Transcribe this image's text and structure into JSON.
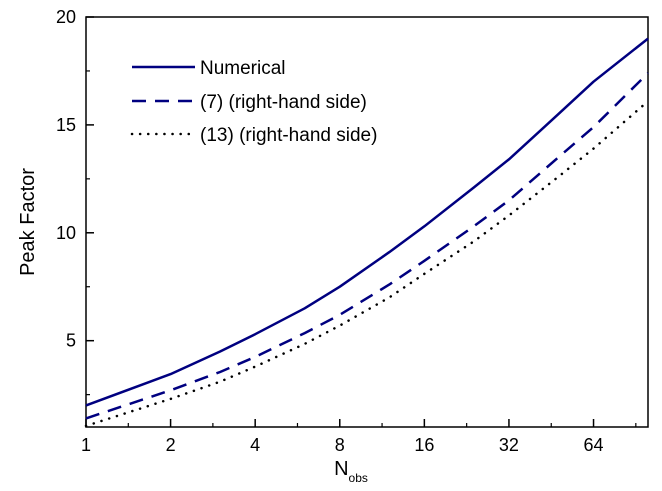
{
  "chart_data": {
    "type": "line",
    "title": "",
    "xlabel": "N",
    "xlabel_sub": "obs",
    "ylabel": "Peak Factor",
    "x_scale": "log2",
    "xlim": [
      1,
      100
    ],
    "ylim": [
      1,
      20
    ],
    "x_ticks": [
      1,
      2,
      4,
      8,
      16,
      32,
      64
    ],
    "x_tick_labels": [
      "1",
      "2",
      "4",
      "8",
      "16",
      "32",
      "64"
    ],
    "y_ticks": [
      5,
      10,
      15,
      20
    ],
    "y_tick_labels": [
      "5",
      "10",
      "15",
      "20"
    ],
    "grid": false,
    "legend_position": "top-left",
    "series": [
      {
        "name": "Numerical",
        "style": "solid",
        "color": "#000080",
        "x": [
          1,
          2,
          3,
          4,
          6,
          8,
          12,
          16,
          24,
          32,
          48,
          64,
          100
        ],
        "y": [
          2.0,
          3.45,
          4.5,
          5.3,
          6.5,
          7.5,
          9.1,
          10.3,
          12.1,
          13.4,
          15.5,
          17.0,
          19.0
        ]
      },
      {
        "name": "(7) (right-hand side)",
        "style": "dashed",
        "color": "#000080",
        "x": [
          1,
          2,
          3,
          4,
          6,
          8,
          12,
          16,
          24,
          32,
          48,
          64,
          100
        ],
        "y": [
          1.4,
          2.7,
          3.55,
          4.25,
          5.35,
          6.2,
          7.6,
          8.7,
          10.3,
          11.5,
          13.5,
          14.9,
          17.4
        ]
      },
      {
        "name": "(13) (right-hand side)",
        "style": "dotted",
        "color": "#000000",
        "x": [
          1,
          2,
          3,
          4,
          6,
          8,
          12,
          16,
          24,
          32,
          48,
          64,
          100
        ],
        "y": [
          1.05,
          2.3,
          3.1,
          3.8,
          4.85,
          5.7,
          7.0,
          8.1,
          9.6,
          10.8,
          12.6,
          13.9,
          16.1
        ]
      }
    ]
  }
}
